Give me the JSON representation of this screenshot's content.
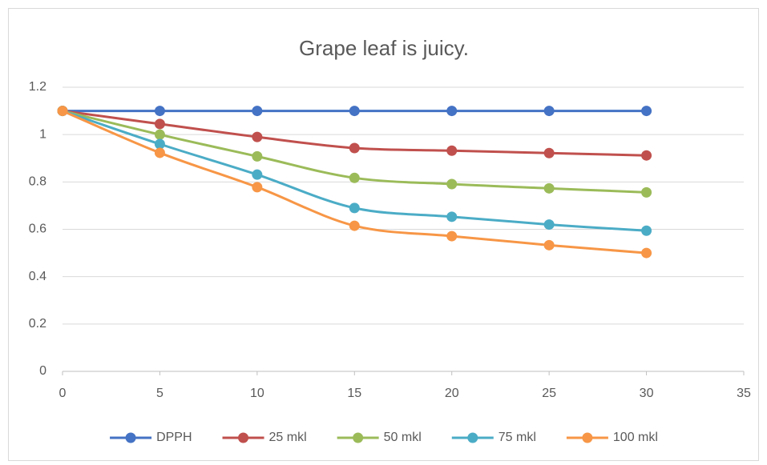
{
  "chart_data": {
    "type": "line",
    "title": "Grape leaf is juicy.",
    "x": [
      0,
      5,
      10,
      15,
      20,
      25,
      30
    ],
    "series": [
      {
        "name": "DPPH",
        "color": "#4472c4",
        "values": [
          1.1,
          1.1,
          1.1,
          1.1,
          1.1,
          1.1,
          1.1
        ]
      },
      {
        "name": "25 mkl",
        "color": "#c0504d",
        "values": [
          1.1,
          1.045,
          0.99,
          0.943,
          0.932,
          0.922,
          0.912
        ]
      },
      {
        "name": "50 mkl",
        "color": "#9bbb59",
        "values": [
          1.1,
          1.0,
          0.908,
          0.817,
          0.791,
          0.773,
          0.756
        ]
      },
      {
        "name": "75 mkl",
        "color": "#4bacc6",
        "values": [
          1.1,
          0.96,
          0.831,
          0.69,
          0.653,
          0.62,
          0.594
        ]
      },
      {
        "name": "100 mkl",
        "color": "#f79646",
        "values": [
          1.1,
          0.923,
          0.778,
          0.615,
          0.571,
          0.533,
          0.5
        ]
      }
    ],
    "xlim": [
      0,
      35
    ],
    "xticks": [
      0,
      5,
      10,
      15,
      20,
      25,
      30,
      35
    ],
    "ylim": [
      0,
      1.2
    ],
    "yticks": [
      0,
      0.2,
      0.4,
      0.6,
      0.8,
      1,
      1.2
    ],
    "grid": true,
    "smooth": true,
    "legend": "bottom"
  }
}
